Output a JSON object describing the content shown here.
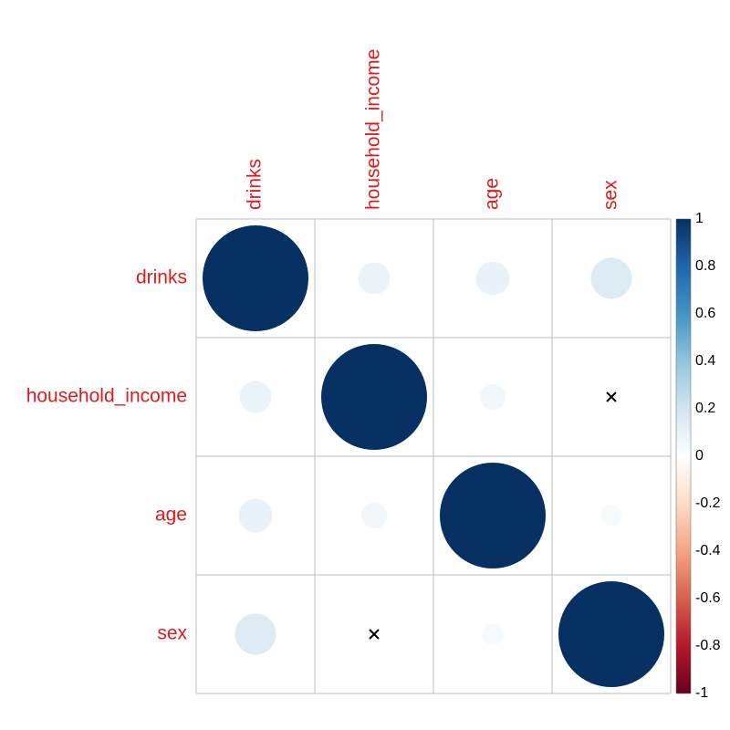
{
  "chart_data": {
    "type": "heatmap",
    "style": "correlation-matrix-circles",
    "variables": [
      "drinks",
      "household_income",
      "age",
      "sex"
    ],
    "matrix": [
      [
        1.0,
        0.09,
        0.1,
        0.15
      ],
      [
        0.09,
        1.0,
        0.06,
        0.0
      ],
      [
        0.1,
        0.06,
        1.0,
        0.04
      ],
      [
        0.15,
        0.0,
        0.04,
        1.0
      ]
    ],
    "insignificant": [
      [
        1,
        3
      ],
      [
        3,
        1
      ]
    ],
    "insignificant_marker": "×",
    "label_color": "#e31a1c",
    "grid": true,
    "colorbar": {
      "position": "right",
      "range": [
        -1,
        1
      ],
      "ticks": [
        "1",
        "0.8",
        "0.6",
        "0.4",
        "0.2",
        "0",
        "-0.2",
        "-0.4",
        "-0.6",
        "-0.8",
        "-1"
      ],
      "tick_values": [
        1,
        0.8,
        0.6,
        0.4,
        0.2,
        0,
        -0.2,
        -0.4,
        -0.6,
        -0.8,
        -1
      ],
      "colors": [
        "#67001f",
        "#b2182b",
        "#d6604d",
        "#f4a582",
        "#fddbc7",
        "#ffffff",
        "#d1e5f0",
        "#92c5de",
        "#4393c3",
        "#2166ac",
        "#053061"
      ]
    }
  }
}
